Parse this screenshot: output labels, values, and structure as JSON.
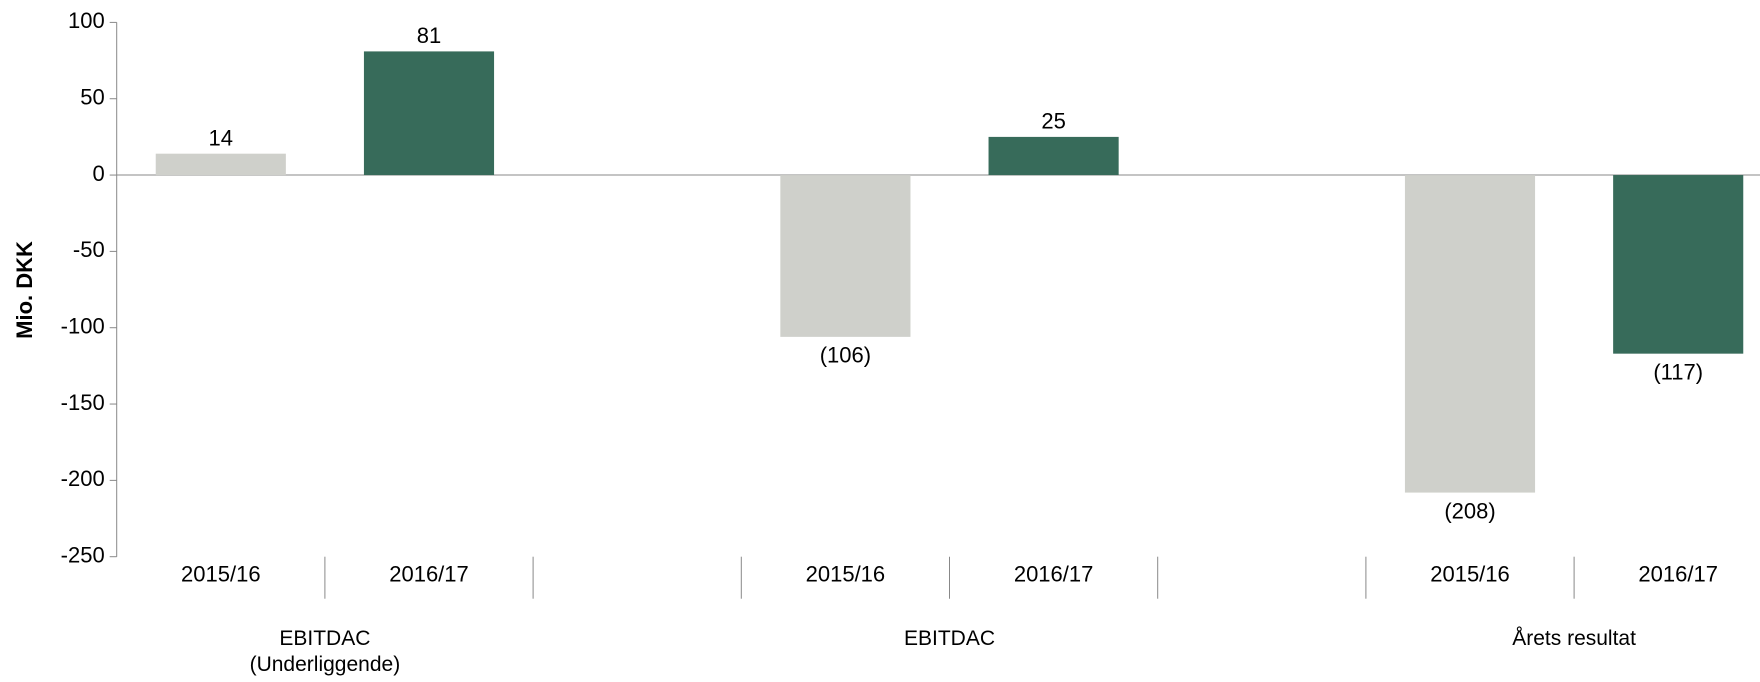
{
  "chart_data": {
    "type": "bar",
    "y_label": "Mio. DKK",
    "categories": [
      "EBITDAC\n(Underliggende)",
      "EBITDAC",
      "Årets resultat"
    ],
    "series": [
      {
        "name": "2015/16",
        "color": "#cfd0cb",
        "values": [
          14,
          -106,
          -208
        ],
        "value_labels": [
          "14",
          "(106)",
          "(208)"
        ]
      },
      {
        "name": "2016/17",
        "color": "#376b5a",
        "values": [
          81,
          25,
          -117
        ],
        "value_labels": [
          "81",
          "25",
          "(117)"
        ]
      }
    ],
    "ylim": [
      -250,
      100
    ],
    "yticks": [
      -250,
      -200,
      -150,
      -100,
      -50,
      0,
      50,
      100
    ],
    "grid": false
  }
}
